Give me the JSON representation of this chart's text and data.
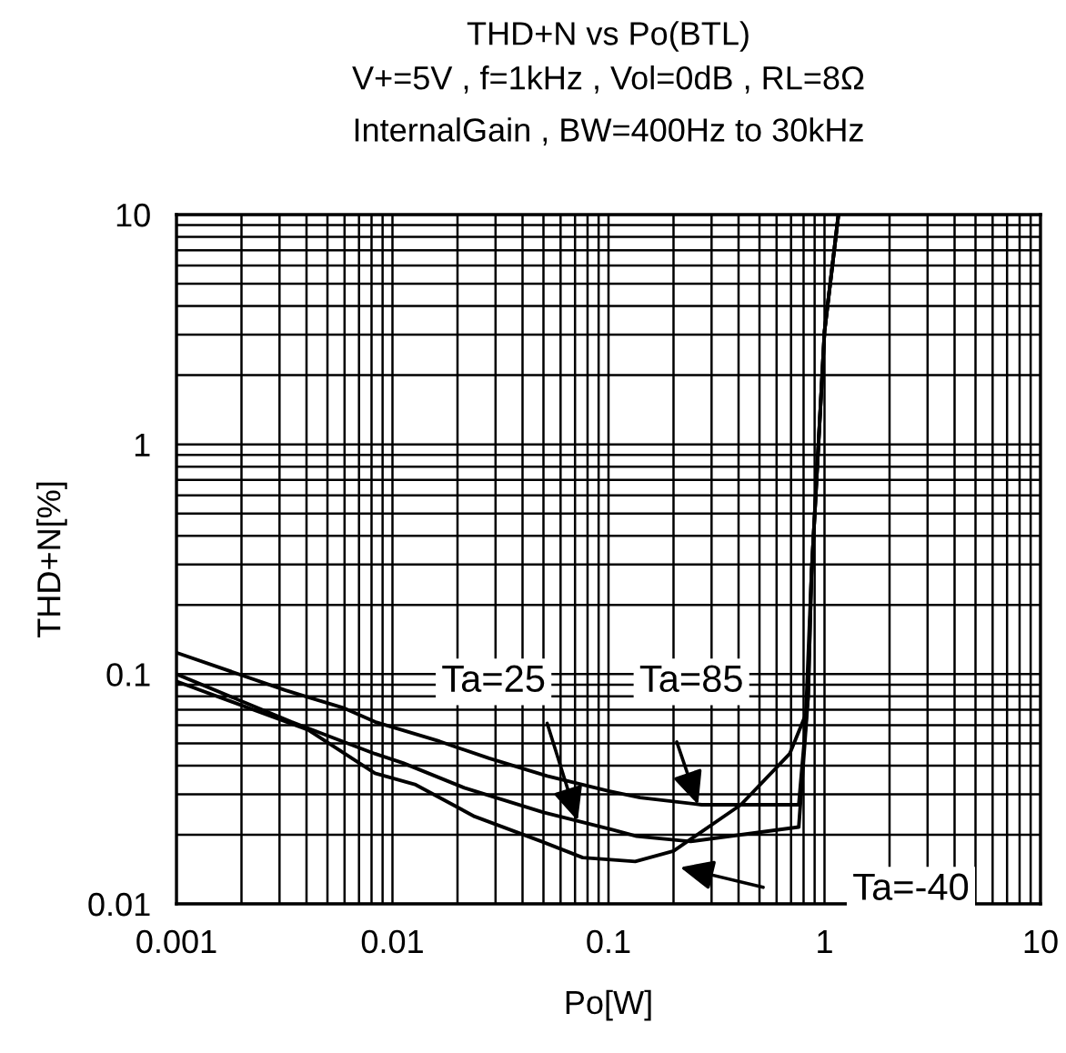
{
  "chart_data": {
    "type": "line",
    "title": "THD+N vs Po(BTL)",
    "subtitle": "V+=5V , f=1kHz , Vol=0dB , RL=8Ω\nInternalGain , BW=400Hz to 30kHz",
    "xlabel": "Po[W]",
    "ylabel": "THD+N[%]",
    "log": "xy",
    "xlim": [
      0.001,
      10
    ],
    "ylim": [
      0.01,
      10
    ],
    "xticks": [
      0.001,
      0.01,
      0.1,
      1,
      10
    ],
    "yticks": [
      0.01,
      0.1,
      1,
      10
    ],
    "grid": true,
    "legend": false,
    "line_style": "solid",
    "marker": "none",
    "series": [
      {
        "color": "#000000",
        "x": [
          0.001,
          0.0032,
          0.006,
          0.0083,
          0.0165,
          0.028,
          0.052,
          0.1,
          0.14,
          0.27,
          0.76,
          0.84,
          0.87,
          1.0,
          1.16
        ],
        "values": [
          0.124,
          0.085,
          0.071,
          0.062,
          0.051,
          0.043,
          0.036,
          0.031,
          0.029,
          0.027,
          0.027,
          0.08,
          0.27,
          3.1,
          10
        ]
      },
      {
        "color": "#000000",
        "x": [
          0.001,
          0.0034,
          0.0083,
          0.0112,
          0.0215,
          0.05,
          0.105,
          0.135,
          0.24,
          0.76,
          0.84,
          0.87,
          1.0,
          1.16
        ],
        "values": [
          0.1,
          0.062,
          0.045,
          0.041,
          0.032,
          0.025,
          0.021,
          0.0197,
          0.0187,
          0.0216,
          0.08,
          0.27,
          3.1,
          10
        ]
      },
      {
        "color": "#000000",
        "x": [
          0.001,
          0.0041,
          0.0083,
          0.0128,
          0.024,
          0.049,
          0.076,
          0.133,
          0.2,
          0.41,
          0.69,
          0.82,
          0.87,
          1.0,
          1.16
        ],
        "values": [
          0.093,
          0.057,
          0.037,
          0.033,
          0.024,
          0.0187,
          0.0159,
          0.0153,
          0.017,
          0.027,
          0.045,
          0.067,
          0.27,
          3.1,
          10
        ]
      }
    ],
    "annotations": [
      {
        "text": "Ta=25",
        "x": 0.072,
        "y": 0.023
      },
      {
        "text": "Ta=85",
        "x": 0.26,
        "y": 0.027
      },
      "Ta=-40"
    ]
  }
}
